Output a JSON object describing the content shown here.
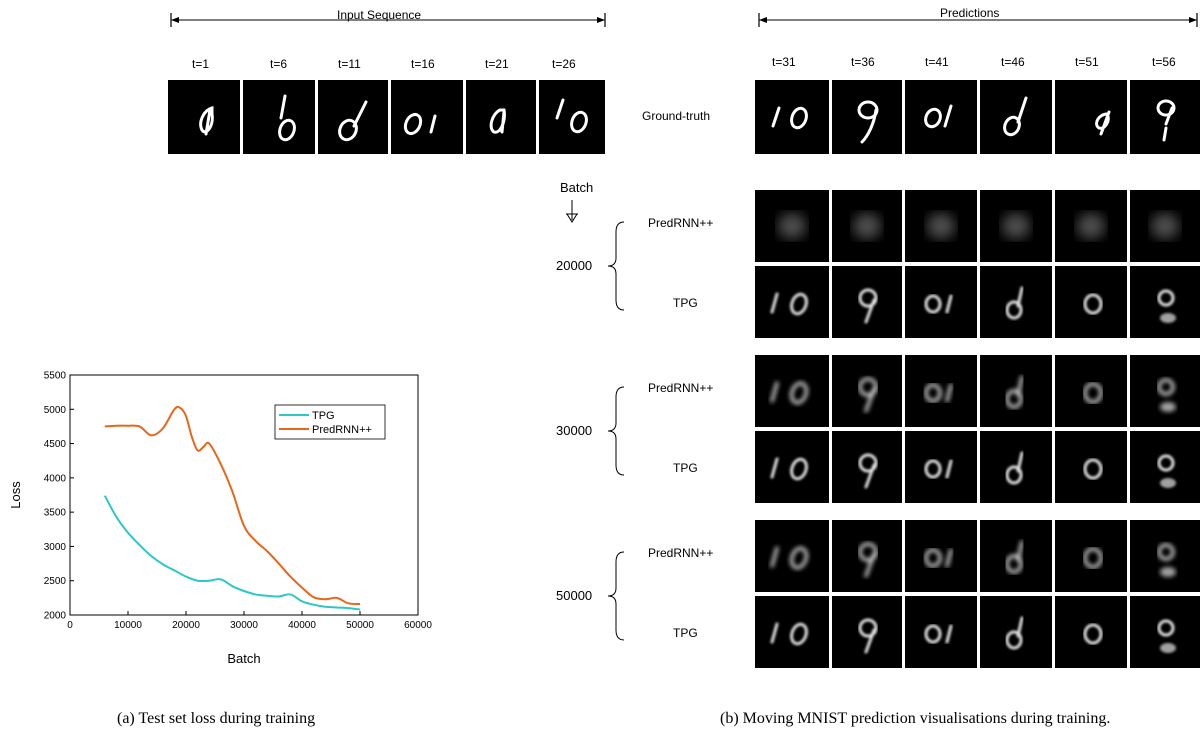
{
  "input_header": "Input Sequence",
  "pred_header": "Predictions",
  "input_times": [
    "t=1",
    "t=6",
    "t=11",
    "t=16",
    "t=21",
    "t=26"
  ],
  "pred_times": [
    "t=31",
    "t=36",
    "t=41",
    "t=46",
    "t=51",
    "t=56"
  ],
  "ground_truth_label": "Ground-truth",
  "batch_label": "Batch",
  "groups": [
    {
      "batch": "20000",
      "top": "PredRNN++",
      "bottom": "TPG"
    },
    {
      "batch": "30000",
      "top": "PredRNN++",
      "bottom": "TPG"
    },
    {
      "batch": "50000",
      "top": "PredRNN++",
      "bottom": "TPG"
    }
  ],
  "caption_a": "(a) Test set loss during training",
  "caption_b": "(b) Moving MNIST prediction visualisations during training.",
  "colors": {
    "tpg": "#2fc6c6",
    "predrnn": "#e8661a"
  },
  "chart_data": {
    "type": "line",
    "xlabel": "Batch",
    "ylabel": "Loss",
    "xlim": [
      0,
      60000
    ],
    "ylim": [
      2000,
      5500
    ],
    "xticks": [
      0,
      10000,
      20000,
      30000,
      40000,
      50000,
      60000
    ],
    "yticks": [
      2000,
      2500,
      3000,
      3500,
      4000,
      4500,
      5000,
      5500
    ],
    "legend_position": "top-right",
    "series": [
      {
        "name": "TPG",
        "x": [
          6000,
          8000,
          10000,
          12000,
          14000,
          16000,
          18000,
          20000,
          22000,
          24000,
          26000,
          28000,
          30000,
          32000,
          34000,
          36000,
          38000,
          40000,
          42000,
          44000,
          46000,
          48000,
          50000
        ],
        "values": [
          3740,
          3430,
          3200,
          3020,
          2860,
          2740,
          2650,
          2560,
          2500,
          2500,
          2520,
          2420,
          2350,
          2300,
          2280,
          2270,
          2300,
          2200,
          2150,
          2120,
          2110,
          2100,
          2080
        ]
      },
      {
        "name": "PredRNN++",
        "x": [
          6000,
          8000,
          10000,
          12000,
          14000,
          16000,
          18000,
          19000,
          20000,
          21000,
          22000,
          23000,
          24000,
          26000,
          28000,
          30000,
          32000,
          34000,
          36000,
          38000,
          40000,
          42000,
          44000,
          46000,
          48000,
          50000
        ],
        "values": [
          4750,
          4760,
          4760,
          4750,
          4620,
          4720,
          5000,
          5020,
          4900,
          4600,
          4400,
          4450,
          4500,
          4200,
          3800,
          3300,
          3080,
          2930,
          2750,
          2560,
          2400,
          2260,
          2230,
          2250,
          2170,
          2160
        ]
      }
    ]
  }
}
